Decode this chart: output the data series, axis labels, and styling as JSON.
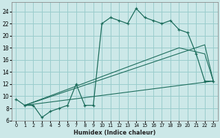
{
  "xlabel": "Humidex (Indice chaleur)",
  "bg_color": "#cce8e8",
  "grid_color": "#99cccc",
  "line_color": "#1a6b5a",
  "xlim": [
    -0.5,
    23.5
  ],
  "ylim": [
    6,
    25.5
  ],
  "xticks": [
    0,
    1,
    2,
    3,
    4,
    5,
    6,
    7,
    8,
    9,
    10,
    11,
    12,
    13,
    14,
    15,
    16,
    17,
    18,
    19,
    20,
    21,
    22,
    23
  ],
  "yticks": [
    6,
    8,
    10,
    12,
    14,
    16,
    18,
    20,
    22,
    24
  ],
  "curve1_x": [
    0,
    1,
    2,
    3,
    4,
    5,
    6,
    7,
    8,
    9,
    10,
    11,
    12,
    13,
    14,
    15,
    16,
    17,
    18,
    19,
    20,
    21,
    22,
    23
  ],
  "curve1_y": [
    9.5,
    8.5,
    8.5,
    6.5,
    7.5,
    8.0,
    8.5,
    12.0,
    8.5,
    8.5,
    22.0,
    23.0,
    22.5,
    22.0,
    24.5,
    23.0,
    22.5,
    22.0,
    22.5,
    21.0,
    20.5,
    17.0,
    12.5,
    12.5
  ],
  "line1_x": [
    1,
    23
  ],
  "line1_y": [
    8.5,
    12.5
  ],
  "line2_x": [
    1,
    19,
    22,
    23
  ],
  "line2_y": [
    8.5,
    18.0,
    17.0,
    12.5
  ],
  "line3_x": [
    1,
    22,
    23
  ],
  "line3_y": [
    8.5,
    18.5,
    12.5
  ]
}
